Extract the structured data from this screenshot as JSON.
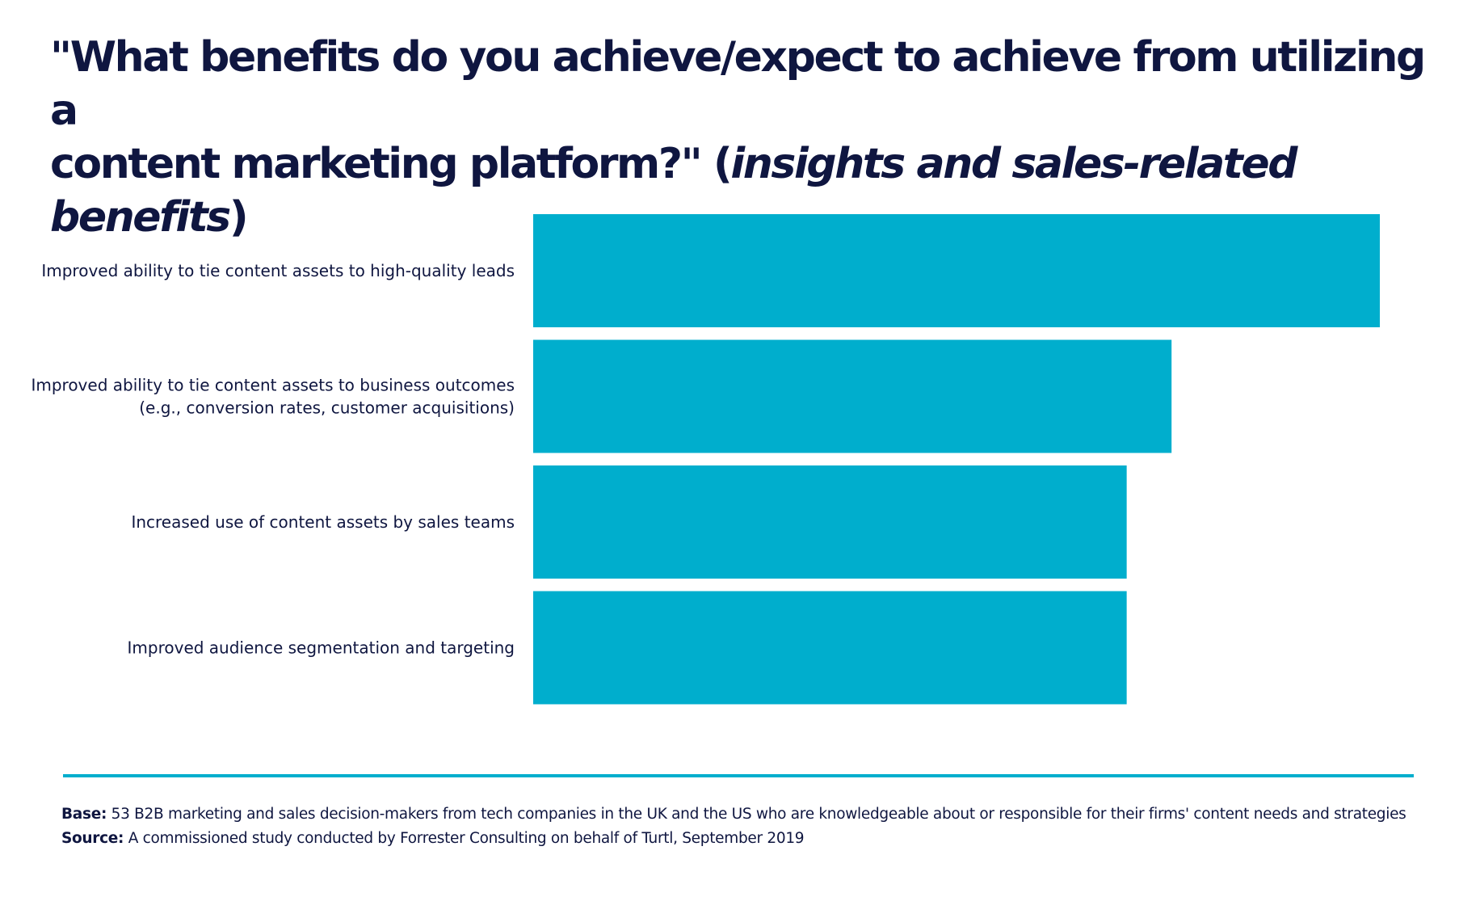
{
  "title": {
    "line1": "\"What benefits do you achieve/expect to achieve from utilizing a",
    "line2_main": "content marketing platform?\" (",
    "line2_em": "insights and sales-related benefits",
    "line2_end": ")"
  },
  "chart_data": {
    "type": "bar",
    "orientation": "horizontal",
    "categories": [
      [
        "Improved ability to tie content assets to high-quality leads"
      ],
      [
        "Improved ability to tie content assets to business outcomes",
        "(e.g., conversion rates, customer acquisitions)"
      ],
      [
        "Increased use of content assets by sales teams"
      ],
      [
        "Improved audience segmentation and targeting"
      ]
    ],
    "values": [
      1.0,
      0.754,
      0.701,
      0.701
    ],
    "value_scale": "relative to longest bar (no values printed)",
    "color": "#00aecd",
    "grid": false,
    "legend": "none",
    "xlabel": "",
    "ylabel": ""
  },
  "footer": {
    "base_label": "Base:",
    "base_text": " 53 B2B marketing and sales decision-makers from tech companies in the UK and the US who are knowledgeable about or responsible for their firms' content needs and strategies",
    "source_label": "Source:",
    "source_text": " A commissioned study conducted by Forrester Consulting on behalf of Turtl, September 2019"
  },
  "colors": {
    "text": "#0f1640",
    "accent": "#00aecd",
    "background": "#ffffff"
  }
}
